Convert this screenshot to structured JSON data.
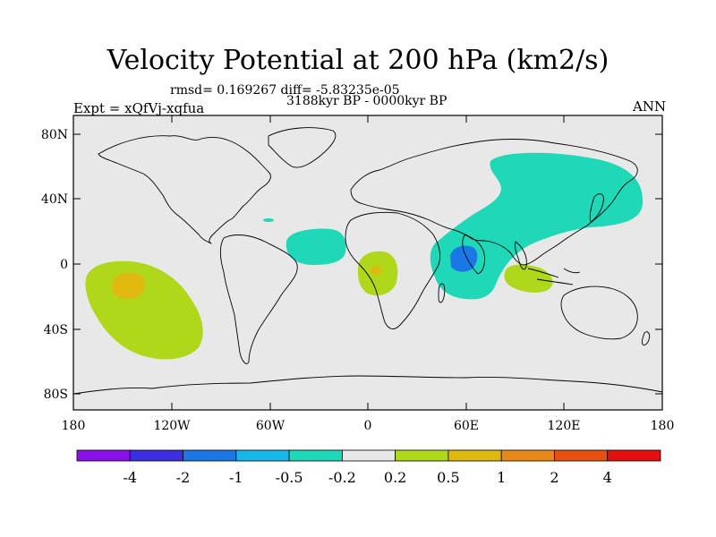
{
  "title": "Velocity Potential at 200 hPa (km2/s)",
  "stats_line": "rmsd= 0.169267 diff= -5.83235e-05",
  "period_line": "3188kyr BP - 0000kyr BP",
  "experiment_line": "Expt = xQfVj-xqfua",
  "season": "ANN",
  "lat_ticks": [
    "80N",
    "40N",
    "0",
    "40S",
    "80S"
  ],
  "lon_ticks": [
    "180",
    "120W",
    "60W",
    "0",
    "60E",
    "120E",
    "180"
  ],
  "colorbar": {
    "labels": [
      "-4",
      "-2",
      "-1",
      "-0.5",
      "-0.2",
      "0.2",
      "0.5",
      "1",
      "2",
      "4"
    ],
    "colors": [
      "#8a10e8",
      "#3a2ee0",
      "#1a78e6",
      "#15b8e6",
      "#1ed8b8",
      "#e8e8e8",
      "#b0d81a",
      "#e0b80e",
      "#e88818",
      "#e85010",
      "#e41010"
    ]
  },
  "colors": {
    "ocean_background": "#e8e8e8",
    "coastline": "#000000"
  }
}
